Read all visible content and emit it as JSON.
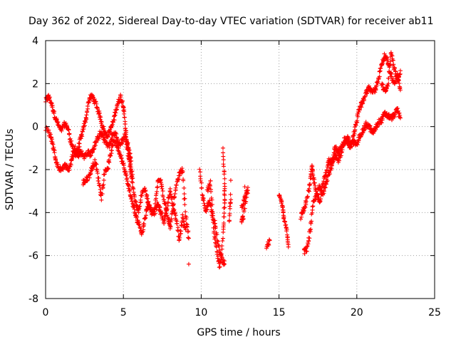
{
  "chart_data": {
    "type": "scatter",
    "title": "Day 362 of 2022, Sidereal Day-to-day VTEC variation (SDTVAR) for receiver ab11",
    "xlabel": "GPS time / hours",
    "ylabel": "SDTVAR / TECUs",
    "xlim": [
      0,
      25
    ],
    "ylim": [
      -8,
      4
    ],
    "xticks": [
      "0",
      "5",
      "10",
      "15",
      "20",
      "25"
    ],
    "yticks": [
      "-8",
      "-6",
      "-4",
      "-2",
      "0",
      "2",
      "4"
    ],
    "grid": true,
    "marker": "+",
    "color": "#ff0000",
    "series": [
      {
        "name": "SDTVAR",
        "traces": [
          [
            [
              0.0,
              1.2
            ],
            [
              0.2,
              1.4
            ],
            [
              0.4,
              1.0
            ],
            [
              0.6,
              0.5
            ],
            [
              0.8,
              0.1
            ],
            [
              1.0,
              -0.2
            ],
            [
              1.2,
              0.1
            ],
            [
              1.4,
              0.0
            ],
            [
              1.6,
              -0.6
            ],
            [
              1.8,
              -1.2
            ],
            [
              2.0,
              -1.3
            ],
            [
              2.2,
              -0.7
            ],
            [
              2.4,
              -0.2
            ],
            [
              2.6,
              0.4
            ],
            [
              2.8,
              1.3
            ],
            [
              3.0,
              1.4
            ],
            [
              3.2,
              1.1
            ],
            [
              3.4,
              0.7
            ],
            [
              3.6,
              0.2
            ],
            [
              3.8,
              -0.3
            ],
            [
              4.0,
              -0.4
            ],
            [
              4.2,
              -0.1
            ],
            [
              4.4,
              0.4
            ],
            [
              4.6,
              1.0
            ],
            [
              4.8,
              1.4
            ],
            [
              5.0,
              1.0
            ],
            [
              5.1,
              0.2
            ],
            [
              5.2,
              -0.6
            ],
            [
              5.4,
              -1.5
            ],
            [
              5.6,
              -2.4
            ]
          ],
          [
            [
              0.0,
              -0.1
            ],
            [
              0.3,
              -0.4
            ],
            [
              0.5,
              -1.0
            ],
            [
              0.7,
              -1.7
            ],
            [
              0.9,
              -2.0
            ],
            [
              1.1,
              -1.9
            ],
            [
              1.3,
              -1.8
            ],
            [
              1.5,
              -2.0
            ],
            [
              1.7,
              -1.5
            ],
            [
              1.9,
              -1.0
            ],
            [
              2.1,
              -1.3
            ],
            [
              2.3,
              -1.2
            ],
            [
              2.5,
              -1.4
            ],
            [
              2.7,
              -1.2
            ],
            [
              2.9,
              -1.3
            ],
            [
              3.1,
              -1.0
            ],
            [
              3.3,
              -0.6
            ],
            [
              3.5,
              -0.3
            ],
            [
              3.7,
              -0.5
            ],
            [
              3.9,
              -0.8
            ],
            [
              4.1,
              -0.9
            ],
            [
              4.3,
              -0.4
            ],
            [
              4.5,
              -0.3
            ],
            [
              4.7,
              -0.9
            ],
            [
              4.9,
              -0.7
            ],
            [
              5.1,
              -0.4
            ],
            [
              5.3,
              -0.9
            ],
            [
              5.5,
              -1.6
            ]
          ],
          [
            [
              2.4,
              -2.6
            ],
            [
              2.6,
              -2.5
            ],
            [
              2.8,
              -2.3
            ],
            [
              3.0,
              -1.9
            ],
            [
              3.2,
              -1.6
            ],
            [
              3.4,
              -2.5
            ],
            [
              3.6,
              -3.3
            ],
            [
              3.8,
              -2.1
            ],
            [
              4.0,
              -1.9
            ],
            [
              4.2,
              -1.2
            ],
            [
              4.4,
              -0.6
            ],
            [
              4.6,
              -0.9
            ],
            [
              4.8,
              -1.3
            ],
            [
              5.0,
              -1.8
            ],
            [
              5.2,
              -2.4
            ],
            [
              5.4,
              -3.0
            ],
            [
              5.6,
              -3.6
            ],
            [
              5.8,
              -4.2
            ],
            [
              6.0,
              -4.5
            ],
            [
              6.2,
              -5.0
            ],
            [
              6.4,
              -4.2
            ],
            [
              6.6,
              -3.6
            ],
            [
              6.8,
              -3.9
            ],
            [
              7.0,
              -4.0
            ],
            [
              7.2,
              -3.6
            ],
            [
              7.4,
              -4.0
            ],
            [
              7.6,
              -4.4
            ],
            [
              7.8,
              -3.8
            ],
            [
              8.0,
              -3.0
            ],
            [
              8.2,
              -3.8
            ],
            [
              8.4,
              -4.3
            ],
            [
              8.6,
              -5.3
            ],
            [
              8.8,
              -4.2
            ],
            [
              9.0,
              -4.8
            ]
          ],
          [
            [
              5.2,
              -0.8
            ],
            [
              5.4,
              -1.8
            ],
            [
              5.6,
              -2.8
            ],
            [
              5.8,
              -3.6
            ],
            [
              6.0,
              -4.0
            ],
            [
              6.2,
              -3.0
            ],
            [
              6.4,
              -2.9
            ],
            [
              6.6,
              -3.6
            ],
            [
              6.8,
              -4.0
            ],
            [
              7.0,
              -3.9
            ],
            [
              7.2,
              -2.6
            ],
            [
              7.4,
              -2.4
            ],
            [
              7.6,
              -3.4
            ],
            [
              7.8,
              -4.0
            ],
            [
              8.0,
              -4.8
            ],
            [
              8.2,
              -3.7
            ],
            [
              8.4,
              -2.8
            ],
            [
              8.6,
              -2.2
            ],
            [
              8.8,
              -2.0
            ],
            [
              9.0,
              -4.1
            ],
            [
              9.2,
              -5.2
            ]
          ],
          [
            [
              9.9,
              -2.1
            ],
            [
              10.1,
              -3.3
            ],
            [
              10.3,
              -4.0
            ],
            [
              10.5,
              -3.4
            ],
            [
              10.7,
              -4.0
            ],
            [
              10.9,
              -4.6
            ],
            [
              11.1,
              -5.6
            ],
            [
              11.3,
              -6.1
            ],
            [
              11.5,
              -6.4
            ]
          ],
          [
            [
              10.4,
              -3.0
            ],
            [
              10.6,
              -2.6
            ],
            [
              10.8,
              -4.8
            ],
            [
              11.0,
              -5.8
            ],
            [
              11.2,
              -6.6
            ],
            [
              11.4,
              -5.0
            ],
            [
              11.5,
              -3.6
            ],
            [
              11.5,
              -2.6
            ],
            [
              11.4,
              -1.0
            ]
          ],
          [
            [
              11.9,
              -3.2
            ],
            [
              11.8,
              -4.4
            ]
          ],
          [
            [
              12.6,
              -3.8
            ],
            [
              12.8,
              -3.3
            ],
            [
              13.0,
              -2.9
            ],
            [
              12.7,
              -4.2
            ],
            [
              12.6,
              -4.4
            ]
          ],
          [
            [
              14.2,
              -5.6
            ],
            [
              14.4,
              -5.3
            ]
          ],
          [
            [
              15.0,
              -3.2
            ],
            [
              15.2,
              -3.6
            ],
            [
              15.3,
              -4.2
            ],
            [
              15.5,
              -4.8
            ],
            [
              15.6,
              -5.6
            ]
          ],
          [
            [
              16.6,
              -5.8
            ],
            [
              16.8,
              -5.7
            ],
            [
              17.0,
              -4.8
            ],
            [
              17.2,
              -3.6
            ],
            [
              17.4,
              -3.2
            ],
            [
              17.6,
              -2.8
            ],
            [
              17.8,
              -3.2
            ],
            [
              18.0,
              -2.6
            ],
            [
              18.2,
              -2.2
            ],
            [
              18.4,
              -1.8
            ],
            [
              18.6,
              -1.4
            ],
            [
              18.8,
              -1.6
            ],
            [
              19.0,
              -1.2
            ],
            [
              19.2,
              -0.6
            ],
            [
              19.4,
              -0.8
            ],
            [
              19.6,
              -0.9
            ],
            [
              19.8,
              -0.7
            ],
            [
              20.0,
              -0.9
            ],
            [
              20.2,
              -0.4
            ],
            [
              20.4,
              -0.2
            ],
            [
              20.6,
              0.1
            ],
            [
              20.8,
              0.0
            ],
            [
              21.0,
              -0.3
            ],
            [
              21.2,
              -0.1
            ],
            [
              21.4,
              0.2
            ],
            [
              21.6,
              0.3
            ],
            [
              21.8,
              0.6
            ],
            [
              22.0,
              0.5
            ],
            [
              22.2,
              0.4
            ],
            [
              22.4,
              0.5
            ],
            [
              22.6,
              0.8
            ],
            [
              22.8,
              0.4
            ]
          ],
          [
            [
              16.4,
              -4.2
            ],
            [
              16.6,
              -3.8
            ],
            [
              16.8,
              -3.4
            ],
            [
              17.0,
              -2.6
            ],
            [
              17.1,
              -1.8
            ],
            [
              17.2,
              -2.4
            ],
            [
              17.4,
              -3.0
            ],
            [
              17.6,
              -3.6
            ],
            [
              17.8,
              -2.8
            ],
            [
              18.0,
              -2.2
            ],
            [
              18.2,
              -1.6
            ],
            [
              18.4,
              -1.6
            ],
            [
              18.6,
              -1.0
            ],
            [
              18.8,
              -1.2
            ],
            [
              19.0,
              -0.9
            ],
            [
              19.2,
              -0.8
            ],
            [
              19.4,
              -0.5
            ],
            [
              19.6,
              -0.9
            ],
            [
              19.8,
              -0.4
            ],
            [
              20.0,
              0.3
            ],
            [
              20.2,
              0.9
            ],
            [
              20.4,
              1.2
            ],
            [
              20.6,
              1.6
            ],
            [
              20.8,
              1.8
            ],
            [
              21.0,
              1.6
            ],
            [
              21.2,
              1.7
            ],
            [
              21.4,
              2.3
            ],
            [
              21.6,
              2.9
            ],
            [
              21.8,
              3.3
            ],
            [
              22.0,
              3.0
            ],
            [
              22.2,
              2.4
            ],
            [
              22.4,
              2.0
            ],
            [
              22.6,
              2.4
            ],
            [
              22.8,
              1.7
            ]
          ],
          [
            [
              21.6,
              2.0
            ],
            [
              21.8,
              1.6
            ],
            [
              22.0,
              1.9
            ],
            [
              22.2,
              3.4
            ],
            [
              22.4,
              2.7
            ],
            [
              22.6,
              2.2
            ],
            [
              22.8,
              2.6
            ]
          ]
        ],
        "isolated_points": [
          [
            9.2,
            -6.4
          ],
          [
            11.9,
            -2.5
          ],
          [
            12.8,
            -2.8
          ],
          [
            13.0,
            -3.1
          ],
          [
            14.3,
            -5.5
          ]
        ]
      }
    ]
  }
}
